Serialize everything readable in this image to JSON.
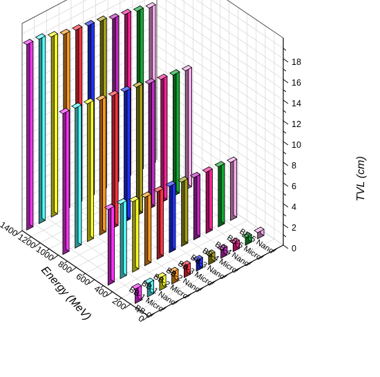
{
  "chart_data": {
    "type": "bar",
    "view": "3d",
    "series": [
      {
        "name": "BB-0",
        "color": "#ff33ff",
        "values": [
          1.4,
          7.3,
          13.6,
          17.9
        ]
      },
      {
        "name": "BB-1 Micro",
        "color": "#55ffff",
        "values": [
          1.3,
          7.2,
          13.5,
          17.8
        ]
      },
      {
        "name": "BB-1 Nano",
        "color": "#ffff22",
        "values": [
          1.2,
          6.8,
          13.3,
          17.4
        ]
      },
      {
        "name": "BB-2 Micro",
        "color": "#ff9922",
        "values": [
          1.1,
          6.6,
          13.0,
          17.0
        ]
      },
      {
        "name": "BB-2 Nano",
        "color": "#ff3344",
        "values": [
          1.1,
          6.5,
          12.8,
          16.8
        ]
      },
      {
        "name": "BB-3 Micro",
        "color": "#2233ff",
        "values": [
          1.0,
          6.4,
          12.6,
          16.6
        ]
      },
      {
        "name": "BB-3 Nano",
        "color": "#a6a01a",
        "values": [
          0.9,
          6.2,
          12.4,
          16.4
        ]
      },
      {
        "name": "BB-4 Micro",
        "color": "#c02cc0",
        "values": [
          0.8,
          6.0,
          12.1,
          16.0
        ]
      },
      {
        "name": "BB-4 Nano",
        "color": "#ff2299",
        "values": [
          0.8,
          5.9,
          11.9,
          15.8
        ]
      },
      {
        "name": "BB-5 Micro",
        "color": "#11aa33",
        "values": [
          0.7,
          5.8,
          11.7,
          15.5
        ]
      },
      {
        "name": "BB-5 Nano",
        "color": "#ffaaee",
        "values": [
          0.6,
          5.6,
          11.5,
          15.2
        ]
      }
    ],
    "energies": [
      200,
      500,
      1000,
      1400
    ],
    "x_axis": {
      "title": "Energy (MeV)",
      "ticks": [
        "0",
        "200",
        "400",
        "600",
        "800",
        "1000",
        "1200",
        "1400"
      ],
      "range": [
        0,
        1400
      ]
    },
    "y_axis": {
      "title": "",
      "ticks": [
        "BB-0",
        "BB-1 Micro",
        "BB-1 Nano",
        "BB-2 Micro",
        "BB-2 Nano",
        "BB-3 Micro",
        "BB-3 Nano",
        "BB-4 Micro",
        "BB-4 Nano",
        "BB-5 Micro",
        "BB-5 Nano"
      ]
    },
    "z_axis": {
      "title": "TVL (cm)",
      "ticks": [
        "0",
        "2",
        "4",
        "6",
        "8",
        "10",
        "12",
        "14",
        "16",
        "18"
      ],
      "range": [
        0,
        20
      ]
    },
    "grid": true
  }
}
